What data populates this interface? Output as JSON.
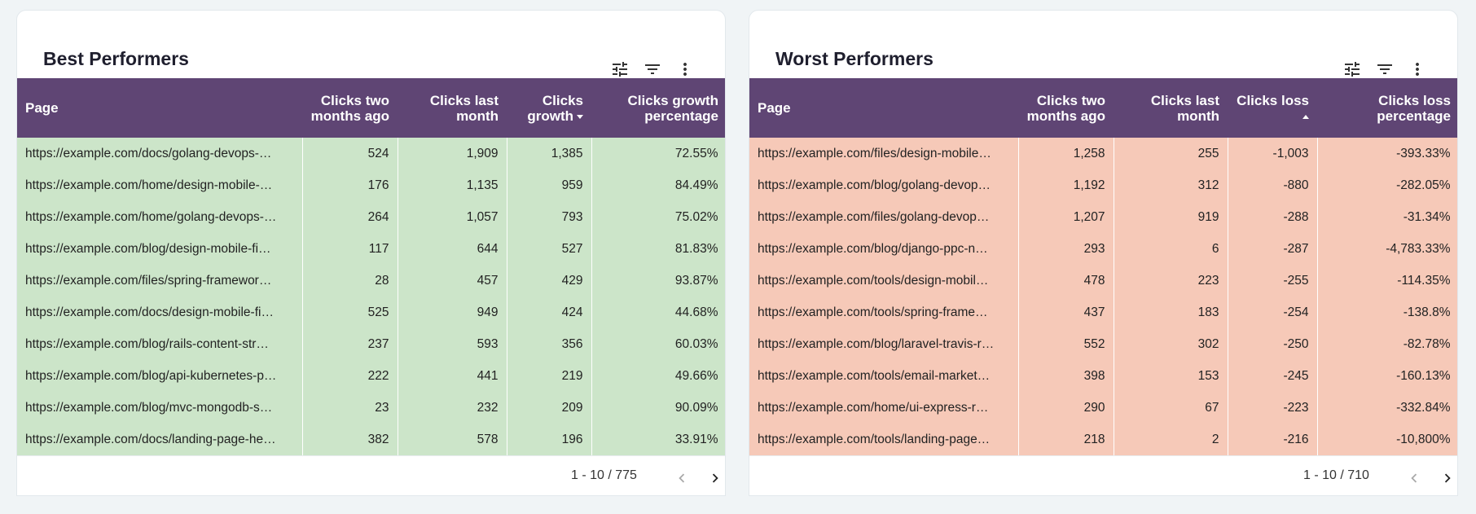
{
  "panels": [
    {
      "title": "Best Performers",
      "row_color": "#cce5c9",
      "sorted_column": 3,
      "sort_direction": "descending",
      "columns": [
        "Page",
        "Clicks two months ago",
        "Clicks last month",
        "Clicks growth",
        "Clicks growth percentage"
      ],
      "rows": [
        [
          "https://example.com/docs/golang-devops-…",
          "524",
          "1,909",
          "1,385",
          "72.55%"
        ],
        [
          "https://example.com/home/design-mobile-…",
          "176",
          "1,135",
          "959",
          "84.49%"
        ],
        [
          "https://example.com/home/golang-devops-…",
          "264",
          "1,057",
          "793",
          "75.02%"
        ],
        [
          "https://example.com/blog/design-mobile-fi…",
          "117",
          "644",
          "527",
          "81.83%"
        ],
        [
          "https://example.com/files/spring-framewor…",
          "28",
          "457",
          "429",
          "93.87%"
        ],
        [
          "https://example.com/docs/design-mobile-fi…",
          "525",
          "949",
          "424",
          "44.68%"
        ],
        [
          "https://example.com/blog/rails-content-str…",
          "237",
          "593",
          "356",
          "60.03%"
        ],
        [
          "https://example.com/blog/api-kubernetes-p…",
          "222",
          "441",
          "219",
          "49.66%"
        ],
        [
          "https://example.com/blog/mvc-mongodb-s…",
          "23",
          "232",
          "209",
          "90.09%"
        ],
        [
          "https://example.com/docs/landing-page-he…",
          "382",
          "578",
          "196",
          "33.91%"
        ]
      ],
      "pagination": "1 - 10 / 775"
    },
    {
      "title": "Worst Performers",
      "row_color": "#f6c9b8",
      "sorted_column": 3,
      "sort_direction": "ascending",
      "columns": [
        "Page",
        "Clicks two months ago",
        "Clicks last month",
        "Clicks loss",
        "Clicks loss percentage"
      ],
      "rows": [
        [
          "https://example.com/files/design-mobile…",
          "1,258",
          "255",
          "-1,003",
          "-393.33%"
        ],
        [
          "https://example.com/blog/golang-devop…",
          "1,192",
          "312",
          "-880",
          "-282.05%"
        ],
        [
          "https://example.com/files/golang-devop…",
          "1,207",
          "919",
          "-288",
          "-31.34%"
        ],
        [
          "https://example.com/blog/django-ppc-n…",
          "293",
          "6",
          "-287",
          "-4,783.33%"
        ],
        [
          "https://example.com/tools/design-mobil…",
          "478",
          "223",
          "-255",
          "-114.35%"
        ],
        [
          "https://example.com/tools/spring-frame…",
          "437",
          "183",
          "-254",
          "-138.8%"
        ],
        [
          "https://example.com/blog/laravel-travis-r…",
          "552",
          "302",
          "-250",
          "-82.78%"
        ],
        [
          "https://example.com/tools/email-market…",
          "398",
          "153",
          "-245",
          "-160.13%"
        ],
        [
          "https://example.com/home/ui-express-r…",
          "290",
          "67",
          "-223",
          "-332.84%"
        ],
        [
          "https://example.com/tools/landing-page…",
          "218",
          "2",
          "-216",
          "-10,800%"
        ]
      ],
      "pagination": "1 - 10 / 710"
    }
  ]
}
